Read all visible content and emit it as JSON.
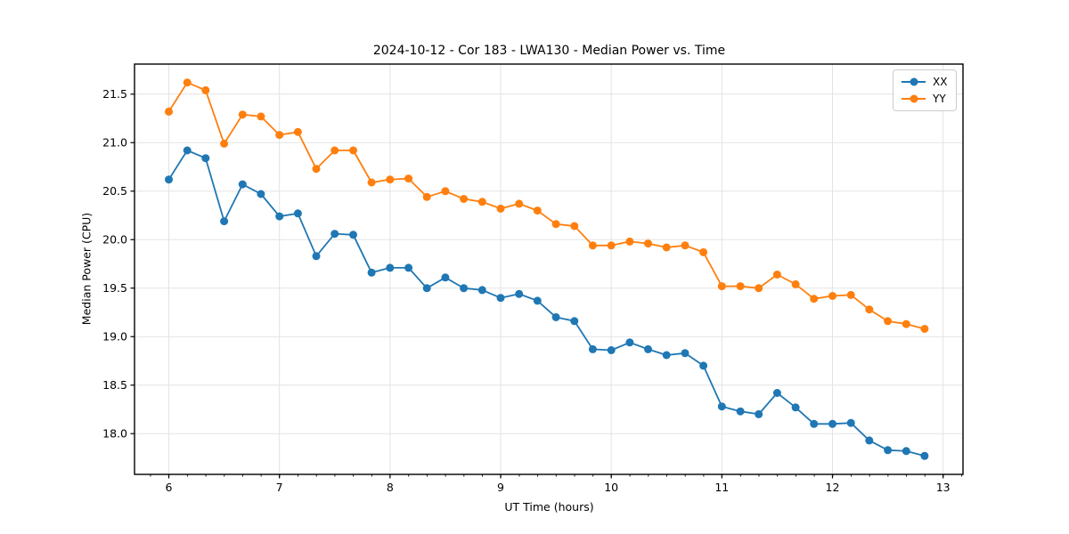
{
  "chart_data": {
    "type": "line",
    "title": "2024-10-12 - Cor 183 - LWA130 - Median Power vs. Time",
    "xlabel": "UT Time (hours)",
    "ylabel": "Median Power (CPU)",
    "xlim": [
      5.69,
      13.18
    ],
    "ylim": [
      17.58,
      21.81
    ],
    "xticks": [
      6,
      7,
      8,
      9,
      10,
      11,
      12,
      13
    ],
    "yticks": [
      18.0,
      18.5,
      19.0,
      19.5,
      20.0,
      20.5,
      21.0,
      21.5
    ],
    "x_minor_step": 0.1667,
    "grid": true,
    "grid_color": "#e3e3e3",
    "legend_position": "upper right",
    "x": [
      6.0,
      6.167,
      6.333,
      6.5,
      6.667,
      6.833,
      7.0,
      7.167,
      7.333,
      7.5,
      7.667,
      7.833,
      8.0,
      8.167,
      8.333,
      8.5,
      8.667,
      8.833,
      9.0,
      9.167,
      9.333,
      9.5,
      9.667,
      9.833,
      10.0,
      10.167,
      10.333,
      10.5,
      10.667,
      10.833,
      11.0,
      11.167,
      11.333,
      11.5,
      11.667,
      11.833,
      12.0,
      12.167,
      12.333,
      12.5,
      12.667,
      12.833
    ],
    "series": [
      {
        "name": "XX",
        "color": "#1f77b4",
        "values": [
          20.62,
          20.92,
          20.84,
          20.19,
          20.57,
          20.47,
          20.24,
          20.27,
          19.83,
          20.06,
          20.05,
          19.66,
          19.71,
          19.71,
          19.5,
          19.61,
          19.5,
          19.48,
          19.4,
          19.44,
          19.37,
          19.2,
          19.16,
          18.87,
          18.86,
          18.94,
          18.87,
          18.81,
          18.83,
          18.7,
          18.28,
          18.23,
          18.2,
          18.42,
          18.27,
          18.1,
          18.1,
          18.11,
          17.93,
          17.83,
          17.82,
          17.77
        ]
      },
      {
        "name": "YY",
        "color": "#ff7f0e",
        "values": [
          21.32,
          21.62,
          21.54,
          20.99,
          21.29,
          21.27,
          21.08,
          21.11,
          20.73,
          20.92,
          20.92,
          20.59,
          20.62,
          20.63,
          20.44,
          20.5,
          20.42,
          20.39,
          20.32,
          20.37,
          20.3,
          20.16,
          20.14,
          19.94,
          19.94,
          19.98,
          19.96,
          19.92,
          19.94,
          19.87,
          19.52,
          19.52,
          19.5,
          19.64,
          19.54,
          19.39,
          19.42,
          19.43,
          19.28,
          19.16,
          19.13,
          19.08
        ]
      }
    ]
  }
}
